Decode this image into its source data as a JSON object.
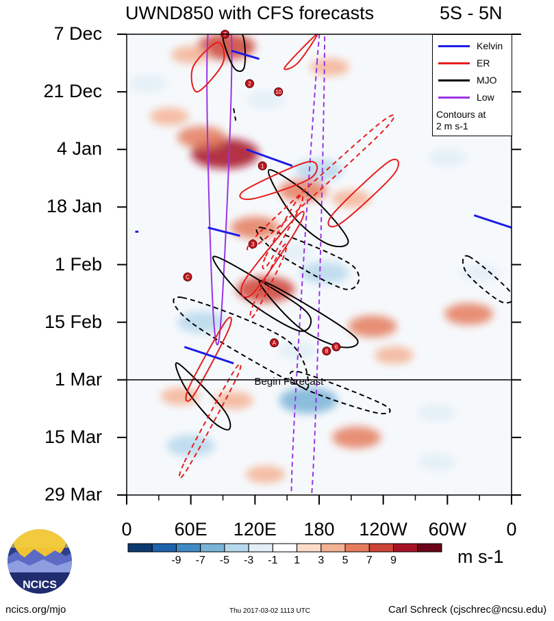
{
  "title": "UWND850 with CFS forecasts",
  "region": "5S - 5N",
  "chart_data": {
    "type": "heatmap",
    "variable": "850 hPa zonal wind anomaly (Hovmoller)",
    "y_ticks": [
      "7 Dec",
      "21 Dec",
      "4 Jan",
      "18 Jan",
      "1 Feb",
      "15 Feb",
      "1 Mar",
      "15 Mar",
      "29 Mar"
    ],
    "x_ticks": [
      "0",
      "60E",
      "120E",
      "180",
      "120W",
      "60W",
      "0"
    ],
    "x_range_deg": [
      0,
      360
    ],
    "y_range_days_since_7dec": [
      0,
      112
    ],
    "forecast_start": {
      "day": 84,
      "label": "Begin Forecast"
    },
    "colorbar": {
      "labels": [
        "-9",
        "-7",
        "-5",
        "-3",
        "-1",
        "1",
        "3",
        "5",
        "7",
        "9"
      ],
      "colors": [
        "#0c3a6e",
        "#1c62ac",
        "#3f8ac4",
        "#79b3d8",
        "#b7d8ec",
        "#e2eef6",
        "#ffffff",
        "#fbdcc8",
        "#f4b294",
        "#e57c5e",
        "#cc4236",
        "#a71326",
        "#6b0419"
      ],
      "units": "m s-1"
    },
    "legend": [
      {
        "name": "Kelvin",
        "color": "#1c1ce6"
      },
      {
        "name": "ER",
        "color": "#e61c1c"
      },
      {
        "name": "MJO",
        "color": "#000000"
      },
      {
        "name": "Low",
        "color": "#9933e6"
      }
    ],
    "contour_note": [
      "Contours at",
      "2 m s-1"
    ],
    "anomaly_blobs": [
      {
        "lon": 93,
        "day": 3,
        "value": 7
      },
      {
        "lon": 60,
        "day": 5,
        "value": 3
      },
      {
        "lon": 190,
        "day": 8,
        "value": 3
      },
      {
        "lon": 20,
        "day": 12,
        "value": -3
      },
      {
        "lon": 130,
        "day": 16,
        "value": -3
      },
      {
        "lon": 40,
        "day": 20,
        "value": 3
      },
      {
        "lon": 92,
        "day": 29,
        "value": 9
      },
      {
        "lon": 70,
        "day": 25,
        "value": 5
      },
      {
        "lon": 180,
        "day": 33,
        "value": -5
      },
      {
        "lon": 300,
        "day": 30,
        "value": -3
      },
      {
        "lon": 165,
        "day": 38,
        "value": 5
      },
      {
        "lon": 210,
        "day": 40,
        "value": 3
      },
      {
        "lon": 120,
        "day": 47,
        "value": 5
      },
      {
        "lon": 155,
        "day": 53,
        "value": -3
      },
      {
        "lon": 185,
        "day": 58,
        "value": -5
      },
      {
        "lon": 330,
        "day": 58,
        "value": -3
      },
      {
        "lon": 130,
        "day": 62,
        "value": 7
      },
      {
        "lon": 70,
        "day": 70,
        "value": -5
      },
      {
        "lon": 230,
        "day": 71,
        "value": 5
      },
      {
        "lon": 160,
        "day": 77,
        "value": -3
      },
      {
        "lon": 250,
        "day": 78,
        "value": 3
      },
      {
        "lon": 320,
        "day": 68,
        "value": 5
      },
      {
        "lon": 100,
        "day": 89,
        "value": 3
      },
      {
        "lon": 170,
        "day": 89,
        "value": -7
      },
      {
        "lon": 50,
        "day": 88,
        "value": 3
      },
      {
        "lon": 290,
        "day": 92,
        "value": -3
      },
      {
        "lon": 215,
        "day": 98,
        "value": 5
      },
      {
        "lon": 60,
        "day": 100,
        "value": -5
      },
      {
        "lon": 130,
        "day": 107,
        "value": 3
      },
      {
        "lon": 290,
        "day": 104,
        "value": -3
      }
    ],
    "contours": [
      {
        "wave": "Low",
        "dashed": false,
        "points": [
          [
            76,
            0
          ],
          [
            98,
            0
          ],
          [
            88,
            70
          ],
          [
            80,
            63
          ]
        ]
      },
      {
        "wave": "Low",
        "dashed": true,
        "points": [
          [
            178,
            7
          ],
          [
            185,
            7
          ],
          [
            173,
            112
          ],
          [
            154,
            112
          ]
        ]
      },
      {
        "wave": "MJO",
        "dashed": false,
        "points": [
          [
            90,
            0
          ],
          [
            108,
            0
          ],
          [
            110,
            8
          ],
          [
            100,
            8
          ]
        ]
      },
      {
        "wave": "MJO",
        "dashed": false,
        "points": [
          [
            133,
            33
          ],
          [
            175,
            40
          ],
          [
            207,
            50
          ],
          [
            188,
            51
          ],
          [
            155,
            44
          ]
        ]
      },
      {
        "wave": "MJO",
        "dashed": false,
        "points": [
          [
            82,
            54
          ],
          [
            150,
            64
          ],
          [
            172,
            69
          ],
          [
            160,
            72
          ],
          [
            110,
            64
          ]
        ]
      },
      {
        "wave": "MJO",
        "dashed": false,
        "points": [
          [
            124,
            60
          ],
          [
            170,
            66
          ],
          [
            215,
            74
          ],
          [
            200,
            76
          ],
          [
            160,
            71
          ]
        ]
      },
      {
        "wave": "MJO",
        "dashed": false,
        "points": [
          [
            48,
            80
          ],
          [
            90,
            91
          ],
          [
            96,
            96
          ],
          [
            80,
            94
          ],
          [
            55,
            86
          ]
        ]
      },
      {
        "wave": "MJO",
        "dashed": true,
        "points": [
          [
            52,
            64
          ],
          [
            148,
            74
          ],
          [
            170,
            85
          ],
          [
            150,
            84
          ],
          [
            60,
            70
          ]
        ]
      },
      {
        "wave": "MJO",
        "dashed": true,
        "points": [
          [
            160,
            82
          ],
          [
            240,
            90
          ],
          [
            233,
            92
          ],
          [
            165,
            86
          ]
        ]
      },
      {
        "wave": "MJO",
        "dashed": true,
        "points": [
          [
            126,
            47
          ],
          [
            210,
            56
          ],
          [
            205,
            62
          ],
          [
            140,
            53
          ]
        ]
      },
      {
        "wave": "MJO",
        "dashed": true,
        "points": [
          [
            320,
            54
          ],
          [
            360,
            63
          ],
          [
            350,
            65
          ],
          [
            318,
            58
          ]
        ]
      },
      {
        "wave": "MJO",
        "dashed": true,
        "points": [
          [
            100,
            18
          ],
          [
            102,
            21
          ]
        ]
      },
      {
        "wave": "ER",
        "dashed": false,
        "points": [
          [
            62,
            8
          ],
          [
            85,
            2
          ],
          [
            90,
            7
          ],
          [
            66,
            14
          ]
        ]
      },
      {
        "wave": "ER",
        "dashed": false,
        "points": [
          [
            148,
            8
          ],
          [
            178,
            0
          ],
          [
            160,
            7
          ]
        ]
      },
      {
        "wave": "ER",
        "dashed": false,
        "points": [
          [
            110,
            38
          ],
          [
            170,
            31
          ],
          [
            172,
            35
          ],
          [
            118,
            40
          ]
        ]
      },
      {
        "wave": "ER",
        "dashed": false,
        "points": [
          [
            192,
            44
          ],
          [
            245,
            31
          ],
          [
            250,
            34
          ],
          [
            200,
            46
          ]
        ]
      },
      {
        "wave": "ER",
        "dashed": false,
        "points": [
          [
            110,
            60
          ],
          [
            160,
            44
          ],
          [
            160,
            47
          ],
          [
            118,
            63
          ]
        ]
      },
      {
        "wave": "ER",
        "dashed": false,
        "points": [
          [
            58,
            86
          ],
          [
            92,
            70
          ],
          [
            95,
            72
          ],
          [
            62,
            88
          ]
        ]
      },
      {
        "wave": "ER",
        "dashed": true,
        "points": [
          [
            125,
            48
          ],
          [
            235,
            22
          ],
          [
            238,
            24
          ],
          [
            128,
            50
          ]
        ]
      },
      {
        "wave": "ER",
        "dashed": true,
        "points": [
          [
            118,
            66
          ],
          [
            145,
            52
          ],
          [
            147,
            54
          ],
          [
            120,
            68
          ]
        ]
      },
      {
        "wave": "ER",
        "dashed": true,
        "points": [
          [
            54,
            104
          ],
          [
            100,
            82
          ],
          [
            102,
            84
          ],
          [
            56,
            106
          ]
        ]
      },
      {
        "wave": "ER",
        "dashed": true,
        "points": [
          [
            130,
            54
          ],
          [
            160,
            40
          ],
          [
            162,
            42
          ],
          [
            132,
            56
          ]
        ]
      },
      {
        "wave": "Kelvin",
        "dashed": false,
        "points": [
          [
            98,
            4
          ],
          [
            124,
            6
          ]
        ]
      },
      {
        "wave": "Kelvin",
        "dashed": false,
        "points": [
          [
            112,
            28
          ],
          [
            155,
            32
          ]
        ]
      },
      {
        "wave": "Kelvin",
        "dashed": false,
        "points": [
          [
            76,
            47
          ],
          [
            106,
            49
          ]
        ]
      },
      {
        "wave": "Kelvin",
        "dashed": false,
        "points": [
          [
            54,
            76
          ],
          [
            100,
            80
          ]
        ]
      },
      {
        "wave": "Kelvin",
        "dashed": false,
        "points": [
          [
            325,
            44
          ],
          [
            360,
            47
          ]
        ]
      },
      {
        "wave": "Kelvin",
        "dashed": false,
        "points": [
          [
            8,
            48
          ],
          [
            11,
            48
          ]
        ]
      }
    ],
    "storm_markers": [
      {
        "lon": 92,
        "day": 0,
        "label": "7"
      },
      {
        "lon": 115,
        "day": 12,
        "label": "2"
      },
      {
        "lon": 142,
        "day": 14,
        "label": "10"
      },
      {
        "lon": 127,
        "day": 32,
        "label": "1"
      },
      {
        "lon": 118,
        "day": 51,
        "label": "3"
      },
      {
        "lon": 57,
        "day": 59,
        "label": "C"
      },
      {
        "lon": 138,
        "day": 75,
        "label": "A"
      },
      {
        "lon": 187,
        "day": 77,
        "label": "8"
      },
      {
        "lon": 196,
        "day": 76,
        "label": "6"
      }
    ]
  },
  "colorbar_units": "m s-1",
  "logo_text": "NCICS",
  "footer": {
    "left": "ncics.org/mjo",
    "middle": "Thu 2017-03-02 1113 UTC",
    "right": "Carl Schreck (cjschrec@ncsu.edu)"
  }
}
